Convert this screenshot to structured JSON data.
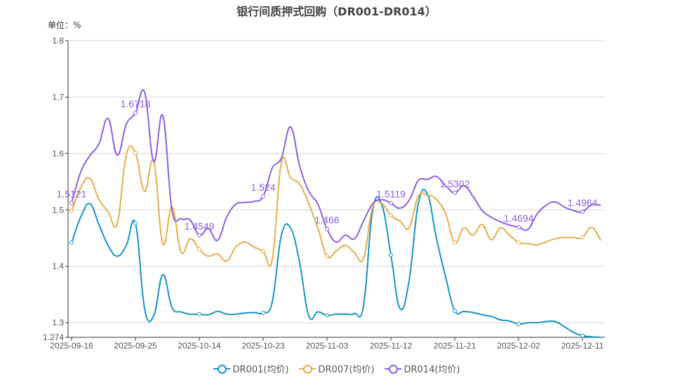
{
  "chart_data": {
    "type": "line",
    "title": "银行间质押式回购（DR001-DR014）",
    "unit_label": "单位：%",
    "ylim": [
      1.274,
      1.8
    ],
    "y_ticks": [
      "1.274",
      "1.3",
      "1.4",
      "1.5",
      "1.6",
      "1.7",
      "1.8"
    ],
    "x_tick_labels": [
      "2025-09-16",
      "2025-09-25",
      "2025-10-14",
      "2025-10-23",
      "2025-11-03",
      "2025-11-12",
      "2025-11-21",
      "2025-12-02",
      "2025-12-11"
    ],
    "grid": true,
    "legend_position": "bottom",
    "smooth": true,
    "series": [
      {
        "name": "DR001(均价)",
        "color": "#1793c8",
        "values": [
          1.442,
          1.487,
          1.511,
          1.474,
          1.437,
          1.418,
          1.437,
          1.476,
          1.325,
          1.312,
          1.385,
          1.327,
          1.319,
          1.315,
          1.315,
          1.314,
          1.32,
          1.315,
          1.315,
          1.317,
          1.318,
          1.3175,
          1.337,
          1.455,
          1.468,
          1.406,
          1.312,
          1.319,
          1.313,
          1.315,
          1.315,
          1.316,
          1.33,
          1.499,
          1.509,
          1.42,
          1.325,
          1.375,
          1.511,
          1.528,
          1.449,
          1.381,
          1.321,
          1.32,
          1.318,
          1.314,
          1.311,
          1.305,
          1.303,
          1.2975,
          1.3,
          1.3,
          1.302,
          1.302,
          1.293,
          1.283,
          1.277,
          1.275,
          1.274
        ]
      },
      {
        "name": "DR007(均价)",
        "color": "#e5ad48",
        "values": [
          1.498,
          1.539,
          1.556,
          1.518,
          1.497,
          1.476,
          1.598,
          1.601,
          1.533,
          1.586,
          1.44,
          1.505,
          1.425,
          1.449,
          1.43,
          1.418,
          1.422,
          1.409,
          1.434,
          1.443,
          1.434,
          1.4265,
          1.412,
          1.584,
          1.557,
          1.546,
          1.511,
          1.468,
          1.418,
          1.427,
          1.437,
          1.424,
          1.414,
          1.505,
          1.511,
          1.49,
          1.48,
          1.468,
          1.524,
          1.526,
          1.518,
          1.493,
          1.442,
          1.468,
          1.455,
          1.474,
          1.447,
          1.468,
          1.455,
          1.442,
          1.44,
          1.438,
          1.443,
          1.449,
          1.451,
          1.451,
          1.451,
          1.469,
          1.446
        ]
      },
      {
        "name": "DR014(均价)",
        "color": "#8c5fe3",
        "values": [
          1.5121,
          1.567,
          1.596,
          1.617,
          1.662,
          1.597,
          1.652,
          1.6718,
          1.709,
          1.586,
          1.667,
          1.5,
          1.484,
          1.482,
          1.4549,
          1.467,
          1.446,
          1.487,
          1.51,
          1.513,
          1.515,
          1.524,
          1.574,
          1.592,
          1.647,
          1.578,
          1.533,
          1.51,
          1.466,
          1.443,
          1.455,
          1.449,
          1.48,
          1.511,
          1.518,
          1.5119,
          1.503,
          1.517,
          1.552,
          1.554,
          1.559,
          1.543,
          1.5302,
          1.543,
          1.524,
          1.499,
          1.487,
          1.479,
          1.473,
          1.4694,
          1.465,
          1.492,
          1.508,
          1.514,
          1.505,
          1.499,
          1.4964,
          1.509,
          1.508
        ]
      }
    ],
    "data_labels": [
      "1.5121",
      "1.6718",
      "1.4549",
      "1.524",
      "1.466",
      "1.5119",
      "1.5302",
      "1.4694",
      "1.4964"
    ]
  }
}
